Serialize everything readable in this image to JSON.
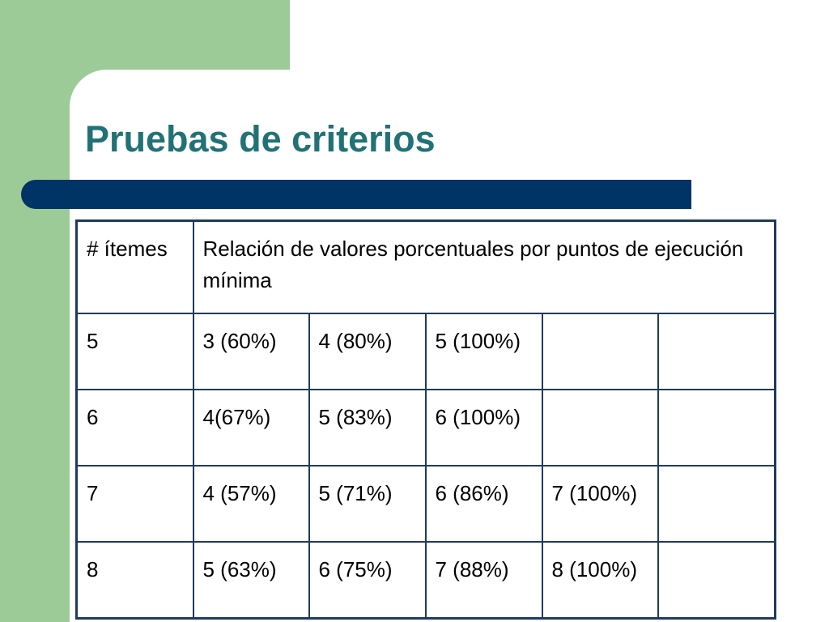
{
  "slide": {
    "title": "Pruebas de criterios",
    "colors": {
      "background": "#ffffff",
      "side_panel": "#9dcb98",
      "title_text": "#217276",
      "accent_bar": "#003366",
      "table_border": "#1f3b5c"
    }
  },
  "table": {
    "header": {
      "items_label": "# ítemes",
      "description": "Relación de valores porcentuales por puntos de ejecución mínima"
    },
    "rows": [
      {
        "items": "5",
        "values": [
          "3 (60%)",
          "4 (80%)",
          "5 (100%)",
          "",
          ""
        ]
      },
      {
        "items": "6",
        "values": [
          "4(67%)",
          "5 (83%)",
          "6 (100%)",
          "",
          ""
        ]
      },
      {
        "items": "7",
        "values": [
          "4 (57%)",
          "5 (71%)",
          "6 (86%)",
          "7 (100%)",
          ""
        ]
      },
      {
        "items": "8",
        "values": [
          "5 (63%)",
          "6 (75%)",
          "7 (88%)",
          "8 (100%)",
          ""
        ]
      }
    ]
  }
}
